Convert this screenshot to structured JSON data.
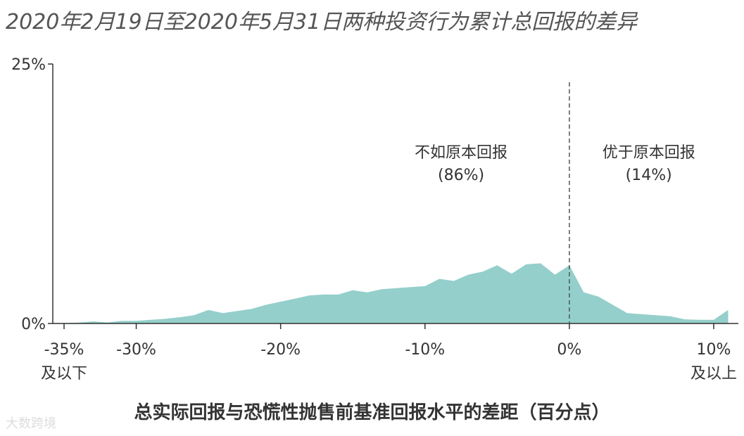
{
  "chart_data": {
    "type": "area",
    "title": "2020年2月19日至2020年5月31日两种投资行为累计总回报的差异",
    "xlabel": "总实际回报与恐慌性抛售前基准回报水平的差距（百分点）",
    "ylabel": "",
    "xlim": [
      -37,
      11
    ],
    "ylim": [
      0,
      25
    ],
    "x_ticks": [
      {
        "value": -35,
        "label": "-35%",
        "sublabel": "及以下"
      },
      {
        "value": -30,
        "label": "-30%",
        "sublabel": ""
      },
      {
        "value": -20,
        "label": "-20%",
        "sublabel": ""
      },
      {
        "value": -10,
        "label": "-10%",
        "sublabel": ""
      },
      {
        "value": 0,
        "label": "0%",
        "sublabel": ""
      },
      {
        "value": 10,
        "label": "10%",
        "sublabel": "及以上"
      }
    ],
    "y_ticks": [
      {
        "value": 0,
        "label": "0%"
      },
      {
        "value": 25,
        "label": "25%"
      }
    ],
    "grid": false,
    "series": [
      {
        "color": "#94cfcb",
        "x": [
          -37,
          -36,
          -35,
          -34,
          -33,
          -32,
          -31,
          -30,
          -29,
          -28,
          -27,
          -26,
          -25,
          -24,
          -23,
          -22,
          -21,
          -20,
          -19,
          -18,
          -17,
          -16,
          -15,
          -14,
          -13,
          -12,
          -11,
          -10,
          -9,
          -8,
          -7,
          -6,
          -5,
          -4,
          -3,
          -2,
          -1,
          0,
          1,
          2,
          3,
          4,
          5,
          6,
          7,
          8,
          9,
          10,
          11
        ],
        "values": [
          0.6,
          0.05,
          0.05,
          0.08,
          0.2,
          0.1,
          0.25,
          0.25,
          0.35,
          0.45,
          0.6,
          0.8,
          1.3,
          1.0,
          1.2,
          1.4,
          1.8,
          2.1,
          2.4,
          2.7,
          2.8,
          2.8,
          3.2,
          3.0,
          3.3,
          3.4,
          3.5,
          3.6,
          4.3,
          4.1,
          4.7,
          5.0,
          5.6,
          4.8,
          5.7,
          5.8,
          4.7,
          5.6,
          3.0,
          2.6,
          1.8,
          1.0,
          0.9,
          0.8,
          0.7,
          0.4,
          0.35,
          0.35,
          1.3
        ]
      }
    ],
    "divider": {
      "x": 0,
      "style": "dashed"
    },
    "annotations": [
      {
        "text": "不如原本回报",
        "subtext": "(86%)",
        "x": -7.5,
        "y": 16
      },
      {
        "text": "优于原本回报",
        "subtext": "(14%)",
        "x": 5.5,
        "y": 16
      }
    ]
  },
  "watermark": "大数跨境"
}
